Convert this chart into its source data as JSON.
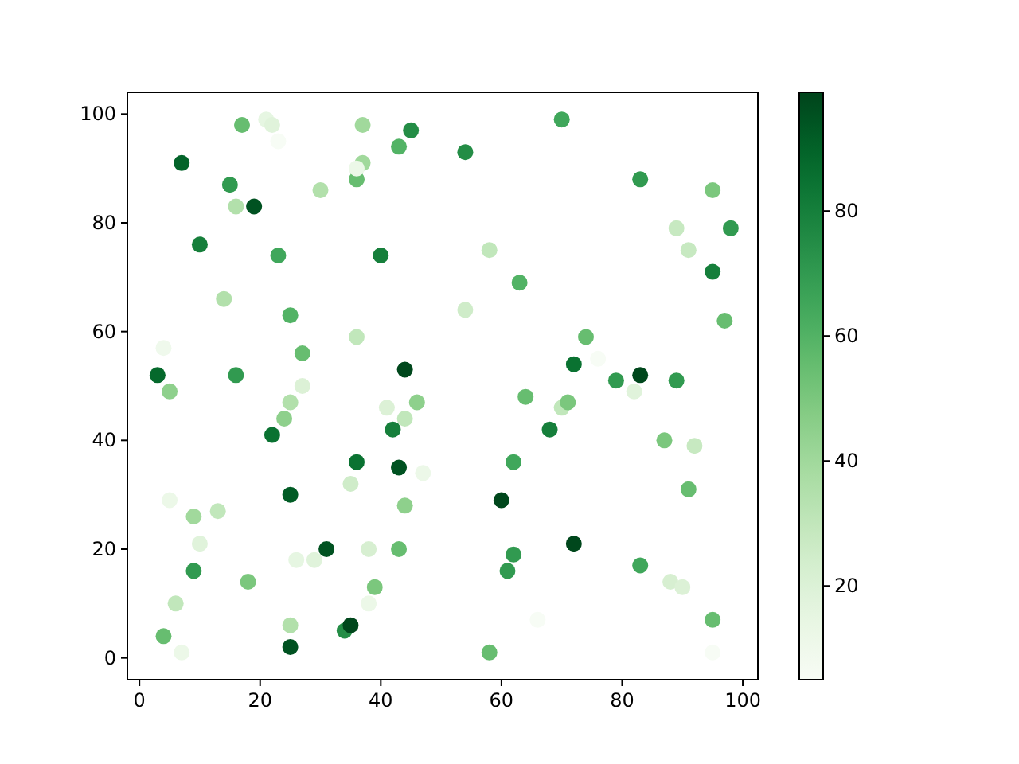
{
  "chart_data": {
    "type": "scatter",
    "marker": "circle",
    "xlim": [
      -2,
      102.5
    ],
    "ylim": [
      -4,
      104
    ],
    "xticks": [
      0,
      20,
      40,
      60,
      80,
      100
    ],
    "yticks": [
      0,
      20,
      40,
      60,
      80,
      100
    ],
    "clim": [
      5,
      99
    ],
    "cticks": [
      20,
      40,
      60,
      80
    ],
    "grid": false,
    "x": [
      3,
      4,
      4,
      5,
      5,
      6,
      7,
      7,
      9,
      9,
      10,
      10,
      13,
      14,
      15,
      16,
      16,
      17,
      18,
      19,
      21,
      22,
      22,
      23,
      23,
      24,
      25,
      25,
      25,
      25,
      25,
      26,
      27,
      27,
      29,
      30,
      31,
      34,
      35,
      35,
      36,
      36,
      36,
      37,
      36,
      37,
      38,
      38,
      39,
      40,
      41,
      42,
      43,
      43,
      43,
      44,
      44,
      44,
      45,
      46,
      47,
      54,
      54,
      58,
      58,
      60,
      61,
      62,
      62,
      63,
      64,
      66,
      68,
      70,
      70,
      71,
      72,
      72,
      74,
      76,
      79,
      82,
      83,
      83,
      83,
      87,
      88,
      89,
      89,
      90,
      91,
      91,
      92,
      95,
      95,
      95,
      95,
      97,
      98
    ],
    "values": [
      52,
      4,
      57,
      49,
      29,
      10,
      91,
      1,
      26,
      16,
      21,
      76,
      27,
      66,
      87,
      83,
      52,
      98,
      14,
      83,
      99,
      98,
      41,
      74,
      95,
      44,
      63,
      47,
      30,
      6,
      2,
      18,
      56,
      50,
      18,
      86,
      20,
      5,
      6,
      32,
      59,
      88,
      36,
      91,
      90,
      98,
      20,
      10,
      13,
      74,
      46,
      42,
      94,
      35,
      20,
      53,
      44,
      28,
      97,
      47,
      34,
      93,
      64,
      75,
      1,
      29,
      16,
      36,
      19,
      69,
      48,
      7,
      42,
      99,
      46,
      47,
      54,
      21,
      59,
      55,
      51,
      49,
      52,
      88,
      17,
      40,
      14,
      79,
      51,
      13,
      75,
      31,
      39,
      86,
      71,
      7,
      1,
      62,
      79
    ],
    "cvalues": [
      88,
      55,
      10,
      45,
      12,
      30,
      90,
      12,
      40,
      70,
      18,
      80,
      30,
      35,
      70,
      35,
      70,
      55,
      50,
      95,
      15,
      18,
      85,
      65,
      5,
      45,
      60,
      35,
      92,
      35,
      95,
      15,
      55,
      20,
      18,
      35,
      95,
      75,
      98,
      25,
      30,
      55,
      85,
      40,
      12,
      40,
      22,
      12,
      50,
      80,
      20,
      80,
      60,
      95,
      55,
      98,
      30,
      45,
      75,
      45,
      12,
      75,
      25,
      30,
      55,
      98,
      70,
      65,
      70,
      60,
      55,
      5,
      80,
      65,
      30,
      50,
      85,
      98,
      55,
      5,
      70,
      18,
      98,
      70,
      65,
      50,
      22,
      28,
      70,
      20,
      28,
      55,
      28,
      50,
      80,
      55,
      5,
      55,
      70
    ]
  }
}
